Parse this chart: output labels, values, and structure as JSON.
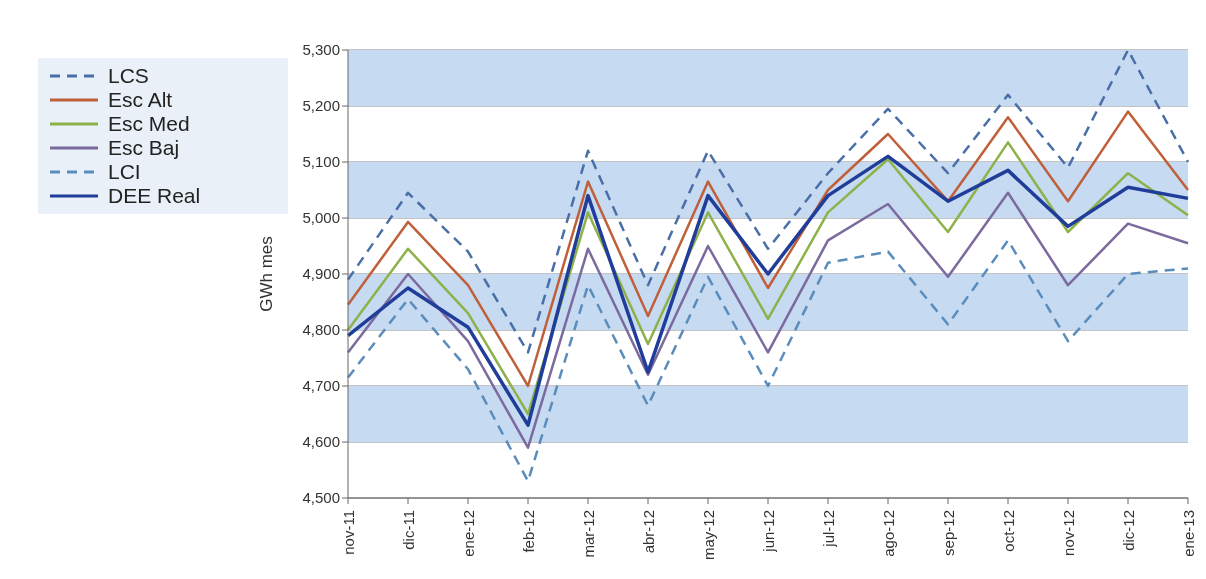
{
  "chart_data": {
    "type": "line",
    "ylabel": "GWh mes",
    "categories": [
      "nov-11",
      "dic-11",
      "ene-12",
      "feb-12",
      "mar-12",
      "abr-12",
      "may-12",
      "jun-12",
      "jul-12",
      "ago-12",
      "sep-12",
      "oct-12",
      "nov-12",
      "dic-12",
      "ene-13"
    ],
    "series": [
      {
        "name": "LCS",
        "color": "#4a6fa8",
        "line_style": "dashed",
        "values": [
          4890,
          5045,
          4940,
          4760,
          5120,
          4880,
          5120,
          4945,
          5080,
          5195,
          5080,
          5220,
          5090,
          5300,
          5100
        ]
      },
      {
        "name": "Esc Alt",
        "color": "#c0603a",
        "line_style": "solid",
        "values": [
          4845,
          4993,
          4880,
          4700,
          5065,
          4825,
          5065,
          4875,
          5050,
          5150,
          5030,
          5180,
          5030,
          5190,
          5050
        ]
      },
      {
        "name": "Esc Med",
        "color": "#8db24a",
        "line_style": "solid",
        "values": [
          4800,
          4945,
          4830,
          4650,
          5010,
          4775,
          5010,
          4820,
          5010,
          5105,
          4975,
          5135,
          4975,
          5080,
          5005
        ]
      },
      {
        "name": "Esc Baj",
        "color": "#7b6a9e",
        "line_style": "solid",
        "values": [
          4760,
          4900,
          4780,
          4590,
          4945,
          4720,
          4950,
          4760,
          4960,
          5025,
          4895,
          5045,
          4880,
          4990,
          4955
        ]
      },
      {
        "name": "LCI",
        "color": "#5a8cbc",
        "line_style": "dashed",
        "values": [
          4715,
          4855,
          4730,
          4530,
          4880,
          4665,
          4895,
          4700,
          4920,
          4940,
          4810,
          4960,
          4780,
          4900,
          4910
        ]
      },
      {
        "name": "DEE Real",
        "color": "#1f3d99",
        "line_style": "solid",
        "values": [
          4790,
          4875,
          4805,
          4630,
          5040,
          4725,
          5040,
          4900,
          5040,
          5110,
          5030,
          5085,
          4985,
          5055,
          5035
        ]
      }
    ],
    "ylim": [
      4500,
      5300
    ],
    "yticks": [
      {
        "value": 4500,
        "label": "4,500"
      },
      {
        "value": 4600,
        "label": "4,600"
      },
      {
        "value": 4700,
        "label": "4,700"
      },
      {
        "value": 4800,
        "label": "4,800"
      },
      {
        "value": 4900,
        "label": "4,900"
      },
      {
        "value": 5000,
        "label": "5,000"
      },
      {
        "value": 5100,
        "label": "5,100"
      },
      {
        "value": 5200,
        "label": "5,200"
      },
      {
        "value": 5300,
        "label": "5,300"
      }
    ],
    "bands": [
      {
        "axis": "y",
        "from": 4600,
        "to": 4700,
        "color": "#c6daf2"
      },
      {
        "axis": "y",
        "from": 4800,
        "to": 4900,
        "color": "#c6daf2"
      },
      {
        "axis": "y",
        "from": 5000,
        "to": 5100,
        "color": "#c6daf2"
      },
      {
        "axis": "y",
        "from": 5200,
        "to": 5300,
        "color": "#c6daf2"
      }
    ],
    "grid": "y",
    "legend": "top left",
    "marker": "none"
  }
}
